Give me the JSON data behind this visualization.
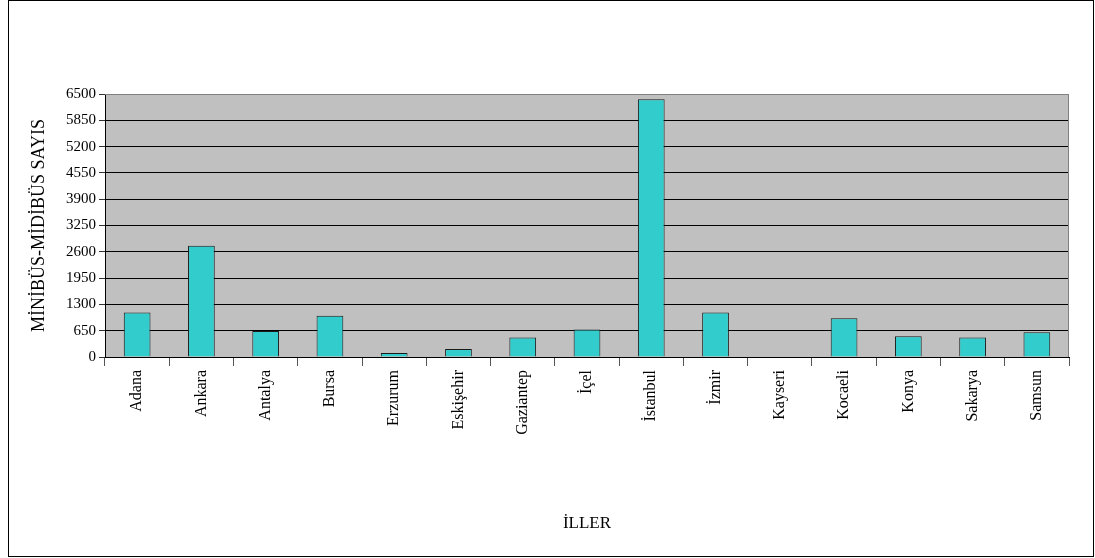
{
  "chart_data": {
    "type": "bar",
    "xlabel": "İLLER",
    "ylabel": "MİNİBÜS-MİDİBÜS SAYIS",
    "categories": [
      "Adana",
      "Ankara",
      "Antalya",
      "Bursa",
      "Erzurum",
      "Eskişehir",
      "Gaziantep",
      "İçel",
      "İstanbul",
      "İzmir",
      "Kayseri",
      "Kocaeli",
      "Konya",
      "Sakarya",
      "Samsun"
    ],
    "values": [
      1100,
      2750,
      640,
      1020,
      100,
      200,
      480,
      680,
      6370,
      1100,
      null,
      960,
      510,
      480,
      610
    ],
    "color": "#33cccc",
    "ylim": [
      0,
      6500
    ],
    "yticks": [
      0,
      650,
      1300,
      1950,
      2600,
      3250,
      3900,
      4550,
      5200,
      5850,
      6500
    ],
    "grid": "y"
  }
}
